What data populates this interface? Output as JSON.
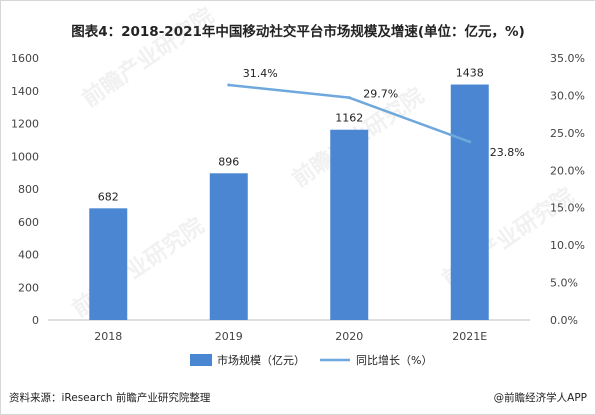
{
  "title": "图表4：2018-2021年中国移动社交平台市场规模及增速(单位：亿元，%)",
  "source": "资料来源：iResearch 前瞻产业研究院整理",
  "brand": "@前瞻经济学人APP",
  "watermark": "前瞻产业研究院",
  "colors": {
    "bar": "#4A86D1",
    "line": "#6FA8DC",
    "axis_text": "#444444",
    "grid": "#d9d9d9"
  },
  "chart_data": {
    "type": "bar",
    "categories": [
      "2018",
      "2019",
      "2020",
      "2021E"
    ],
    "series": [
      {
        "name": "市场规模（亿元）",
        "type": "bar",
        "axis": "left",
        "values": [
          682,
          896,
          1162,
          1438
        ],
        "labels": [
          "682",
          "896",
          "1162",
          "1438"
        ]
      },
      {
        "name": "同比增长（%）",
        "type": "line",
        "axis": "right",
        "x": [
          "2019",
          "2020",
          "2021E"
        ],
        "values": [
          31.4,
          29.7,
          23.8
        ],
        "labels": [
          "31.4%",
          "29.7%",
          "23.8%"
        ]
      }
    ],
    "yleft": {
      "lim": [
        0,
        1600
      ],
      "ticks": [
        "0",
        "200",
        "400",
        "600",
        "800",
        "1000",
        "1200",
        "1400",
        "1600"
      ]
    },
    "yright": {
      "lim": [
        0,
        35
      ],
      "ticks": [
        "0.0%",
        "5.0%",
        "10.0%",
        "15.0%",
        "20.0%",
        "25.0%",
        "30.0%",
        "35.0%"
      ]
    },
    "legend_position": "bottom",
    "grid": false
  }
}
